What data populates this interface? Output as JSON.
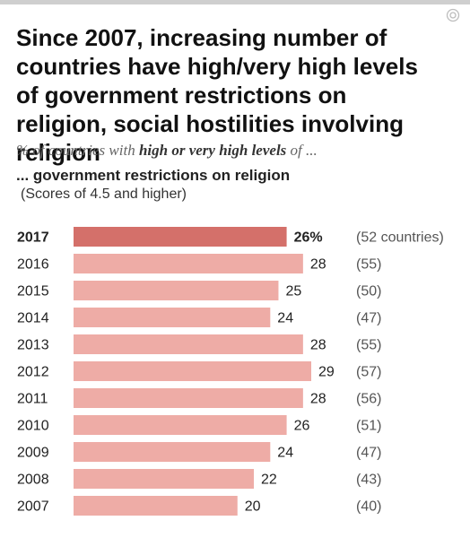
{
  "header": {
    "title": "Since 2007, increasing number of countries have high/very high levels of government restrictions on religion, social hostilities involving religion",
    "subtitle_pre": "% of countries with ",
    "subtitle_emphasis": "high or very high levels",
    "subtitle_post": " of ...",
    "section_heading": "... government restrictions on religion",
    "section_note": "(Scores of 4.5 and higher)"
  },
  "colors": {
    "highlight_bar": "#d4706a",
    "bar": "#eeaca6",
    "top_rule": "#cfcfcf"
  },
  "chart_data": {
    "type": "bar",
    "orientation": "horizontal",
    "categories": [
      "2017",
      "2016",
      "2015",
      "2014",
      "2013",
      "2012",
      "2011",
      "2010",
      "2009",
      "2008",
      "2007"
    ],
    "values": [
      26,
      28,
      25,
      24,
      28,
      29,
      28,
      26,
      24,
      22,
      20
    ],
    "value_labels": [
      "26%",
      "28",
      "25",
      "24",
      "28",
      "29",
      "28",
      "26",
      "24",
      "22",
      "20"
    ],
    "country_counts": [
      "(52 countries)",
      "(55)",
      "(50)",
      "(47)",
      "(55)",
      "(57)",
      "(56)",
      "(51)",
      "(47)",
      "(43)",
      "(40)"
    ],
    "highlight_index": 0,
    "xlim": [
      0,
      29
    ],
    "grid": false,
    "legend": "none"
  }
}
